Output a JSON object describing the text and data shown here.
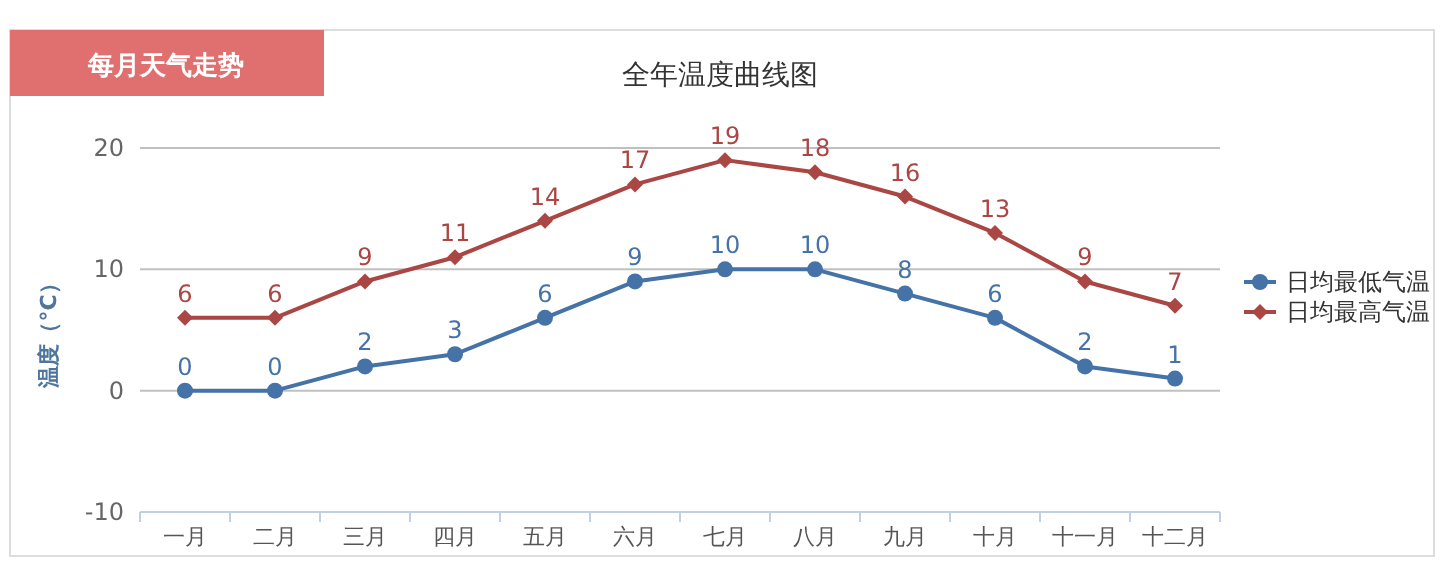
{
  "chart_data": {
    "type": "line",
    "title": "全年温度曲线图",
    "ylabel": "温度（°C）",
    "annotations": [
      "每月天气走势"
    ],
    "categories": [
      "一月",
      "二月",
      "三月",
      "四月",
      "五月",
      "六月",
      "七月",
      "八月",
      "九月",
      "十月",
      "十一月",
      "十二月"
    ],
    "series": [
      {
        "name": "日均最低气温",
        "color": "#4572a7",
        "marker": "circle",
        "values": [
          0,
          0,
          2,
          3,
          6,
          9,
          10,
          10,
          8,
          6,
          2,
          1
        ]
      },
      {
        "name": "日均最高气温",
        "color": "#aa4643",
        "marker": "diamond",
        "values": [
          6,
          6,
          9,
          11,
          14,
          17,
          19,
          18,
          16,
          13,
          9,
          7
        ]
      }
    ],
    "ylim": [
      -10,
      20
    ],
    "yticks": [
      -10,
      0,
      10,
      20
    ],
    "grid": "y",
    "legend": "right",
    "data_labels": true
  }
}
